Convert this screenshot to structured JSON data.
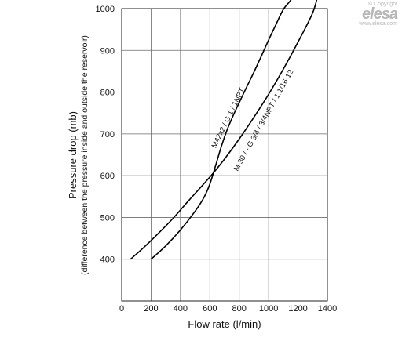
{
  "logo": {
    "copyright": "© Copyright",
    "brand": "elesa",
    "url": "www.elesa.com"
  },
  "chart_data": {
    "type": "line",
    "title": "",
    "xlabel": "Flow rate (l/min)",
    "ylabel": "Pressure drop (mb)",
    "ylabel_sub": "(difference between the pressure inside and outside the reservoir)",
    "xlim": [
      0,
      1400
    ],
    "ylim": [
      300,
      1000
    ],
    "x_ticks": [
      "0",
      "200",
      "400",
      "600",
      "800",
      "1000",
      "1200",
      "1400"
    ],
    "x_tick_values": [
      0,
      200,
      400,
      600,
      800,
      1000,
      1200,
      1400
    ],
    "y_ticks": [
      "400",
      "500",
      "600",
      "700",
      "800",
      "900",
      "1000"
    ],
    "y_tick_values": [
      400,
      500,
      600,
      700,
      800,
      900,
      1000
    ],
    "grid": true,
    "series": [
      {
        "name": "M42x2 / G 1 / 1NPT",
        "x": [
          200,
          300,
          400,
          500,
          560,
          600,
          640,
          680,
          720,
          760,
          800,
          850,
          900,
          950,
          1000,
          1050,
          1100,
          1150,
          1180
        ],
        "y": [
          400,
          432,
          470,
          515,
          548,
          580,
          625,
          672,
          712,
          745,
          775,
          812,
          848,
          886,
          925,
          962,
          998,
          1020,
          1040
        ]
      },
      {
        "name": "M 30 / - G 3/4 / 3/4NPT / 1.1/16-12",
        "x": [
          60,
          150,
          250,
          350,
          450,
          550,
          620,
          700,
          800,
          900,
          1000,
          1100,
          1200,
          1300,
          1340
        ],
        "y": [
          400,
          428,
          462,
          498,
          538,
          577,
          605,
          640,
          688,
          740,
          795,
          855,
          920,
          990,
          1040
        ]
      }
    ]
  }
}
